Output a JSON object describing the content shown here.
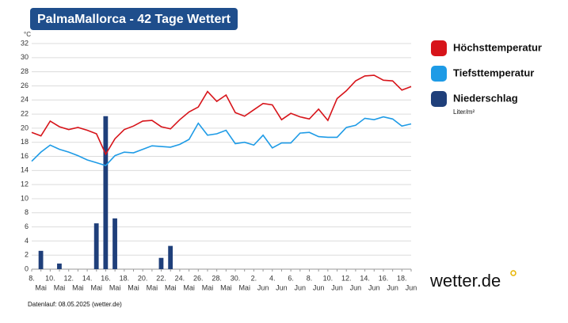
{
  "chart_data": {
    "type": "line",
    "title": "PalmaMallorca - 42 Tage Wettert",
    "y_unit": "°C",
    "categories": [
      "8.",
      null,
      "10.",
      null,
      "12.",
      null,
      "14.",
      null,
      "16.",
      null,
      "18.",
      null,
      "20.",
      null,
      "22.",
      null,
      "24.",
      null,
      "26.",
      null,
      "28.",
      null,
      "30.",
      null,
      "2.",
      null,
      "4.",
      null,
      "6.",
      null,
      "8.",
      null,
      "10.",
      null,
      "12.",
      null,
      "14.",
      null,
      "16.",
      null,
      "18.",
      null
    ],
    "category_months": [
      "Mai",
      null,
      "Mai",
      null,
      "Mai",
      null,
      "Mai",
      null,
      "Mai",
      null,
      "Mai",
      null,
      "Mai",
      null,
      "Mai",
      null,
      "Mai",
      null,
      "Mai",
      null,
      "Mai",
      null,
      "Mai",
      null,
      "Jun",
      null,
      "Jun",
      null,
      "Jun",
      null,
      "Jun",
      null,
      "Jun",
      null,
      "Jun",
      null,
      "Jun",
      null,
      "Jun",
      null,
      "Jun",
      null
    ],
    "series": [
      {
        "name": "Höchsttemperatur",
        "color": "#d7141a",
        "kind": "line",
        "values": [
          19.4,
          18.9,
          21.0,
          20.2,
          19.8,
          20.1,
          19.7,
          19.2,
          16.3,
          18.5,
          19.8,
          20.3,
          21.0,
          21.1,
          20.2,
          19.9,
          21.2,
          22.3,
          23.0,
          25.2,
          23.8,
          24.7,
          22.2,
          21.7,
          22.6,
          23.5,
          23.3,
          21.2,
          22.1,
          21.6,
          21.3,
          22.7,
          21.1,
          24.2,
          25.3,
          26.7,
          27.4,
          27.5,
          26.8,
          26.7,
          25.4,
          25.9
        ]
      },
      {
        "name": "Tiefsttemperatur",
        "color": "#1e9be6",
        "kind": "line",
        "values": [
          15.3,
          16.6,
          17.6,
          17.0,
          16.6,
          16.1,
          15.5,
          15.1,
          14.7,
          16.1,
          16.6,
          16.5,
          17.0,
          17.5,
          17.4,
          17.3,
          17.7,
          18.4,
          20.7,
          19.0,
          19.2,
          19.7,
          17.8,
          18.0,
          17.6,
          19.0,
          17.2,
          17.9,
          17.9,
          19.3,
          19.4,
          18.8,
          18.7,
          18.7,
          20.1,
          20.4,
          21.4,
          21.2,
          21.6,
          21.3,
          20.3,
          20.6
        ]
      },
      {
        "name": "Niederschlag",
        "unit": "Liter/m²",
        "color": "#1f3f7a",
        "kind": "bar",
        "values": [
          0,
          2.6,
          0,
          0.8,
          0,
          0,
          0,
          6.5,
          21.7,
          7.2,
          0,
          0,
          0,
          0,
          1.6,
          3.3,
          0,
          0,
          0,
          0,
          0,
          0,
          0,
          0,
          0,
          0,
          0,
          0,
          0,
          0,
          0,
          0,
          0,
          0,
          0,
          0,
          0,
          0,
          0,
          0,
          0,
          0
        ]
      }
    ],
    "ylim": [
      0,
      32
    ],
    "yticks": [
      0,
      2,
      4,
      6,
      8,
      10,
      12,
      14,
      16,
      18,
      20,
      22,
      24,
      26,
      28,
      30,
      32
    ],
    "grid": true,
    "footer": "Datenlauf: 08.05.2025 (wetter.de)",
    "logo": "wetter.de"
  }
}
